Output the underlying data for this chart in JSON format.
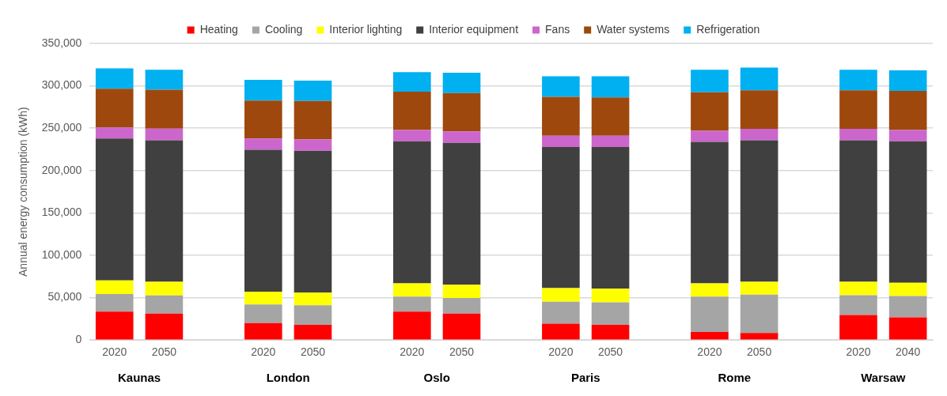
{
  "chart_data": {
    "type": "bar",
    "stacked": true,
    "ylabel": "Annual energy consumption (kWh)",
    "categories": [
      "2020",
      "2050",
      null,
      "2020",
      "2050",
      null,
      "2020",
      "2050",
      null,
      "2020",
      "2050",
      null,
      "2020",
      "2050",
      null,
      "2020",
      "2040"
    ],
    "annotations": [
      "Kaunas",
      "London",
      "Oslo",
      "Paris",
      "Rome",
      "Warsaw"
    ],
    "ylim": [
      0,
      350000
    ],
    "yticks": [
      0,
      {
        "value": 50000,
        "label": "50,000"
      },
      {
        "value": 100000,
        "label": "100,000"
      },
      {
        "value": 150000,
        "label": "150,000"
      },
      {
        "value": 200000,
        "label": "200,000"
      },
      {
        "value": 250000,
        "label": "250,000"
      },
      {
        "value": 300000,
        "label": "300,000"
      },
      {
        "value": 350000,
        "label": "350,000"
      }
    ],
    "grid": "y",
    "legend": "top",
    "series": [
      {
        "name": "Heating",
        "color": "#ff0000",
        "values": [
          33500,
          31200,
          null,
          20100,
          17800,
          null,
          33500,
          31200,
          null,
          19400,
          17800,
          null,
          9400,
          8400,
          null,
          29500,
          26800
        ]
      },
      {
        "name": "Cooling",
        "color": "#a5a5a5",
        "values": [
          20800,
          21400,
          null,
          21800,
          23100,
          null,
          17800,
          18400,
          null,
          25800,
          26800,
          null,
          41900,
          45200,
          null,
          23400,
          25100
        ]
      },
      {
        "name": "Interior lighting",
        "color": "#ffff00",
        "values": [
          16100,
          16100,
          null,
          15100,
          15000,
          null,
          15700,
          15700,
          null,
          16100,
          16000,
          null,
          15700,
          15100,
          null,
          15800,
          15800
        ]
      },
      {
        "name": "Interior equipment",
        "color": "#404040",
        "values": [
          167500,
          167100,
          null,
          167500,
          167500,
          null,
          167500,
          167500,
          null,
          166500,
          167200,
          null,
          166800,
          167100,
          null,
          167100,
          166800
        ]
      },
      {
        "name": "Fans",
        "color": "#cc66cc",
        "values": [
          13000,
          13800,
          null,
          13400,
          13400,
          null,
          13400,
          13400,
          null,
          13400,
          13400,
          null,
          13100,
          13400,
          null,
          13400,
          13400
        ]
      },
      {
        "name": "Water systems",
        "color": "#9e480e",
        "values": [
          45600,
          45900,
          null,
          44800,
          45300,
          null,
          45200,
          45300,
          null,
          45900,
          45200,
          null,
          45600,
          45600,
          null,
          45600,
          46200
        ]
      },
      {
        "name": "Refrigeration",
        "color": "#00b0f0",
        "values": [
          24100,
          23400,
          null,
          24500,
          24100,
          null,
          23100,
          24100,
          null,
          24100,
          24800,
          null,
          26400,
          26800,
          null,
          24100,
          24100
        ]
      }
    ]
  }
}
